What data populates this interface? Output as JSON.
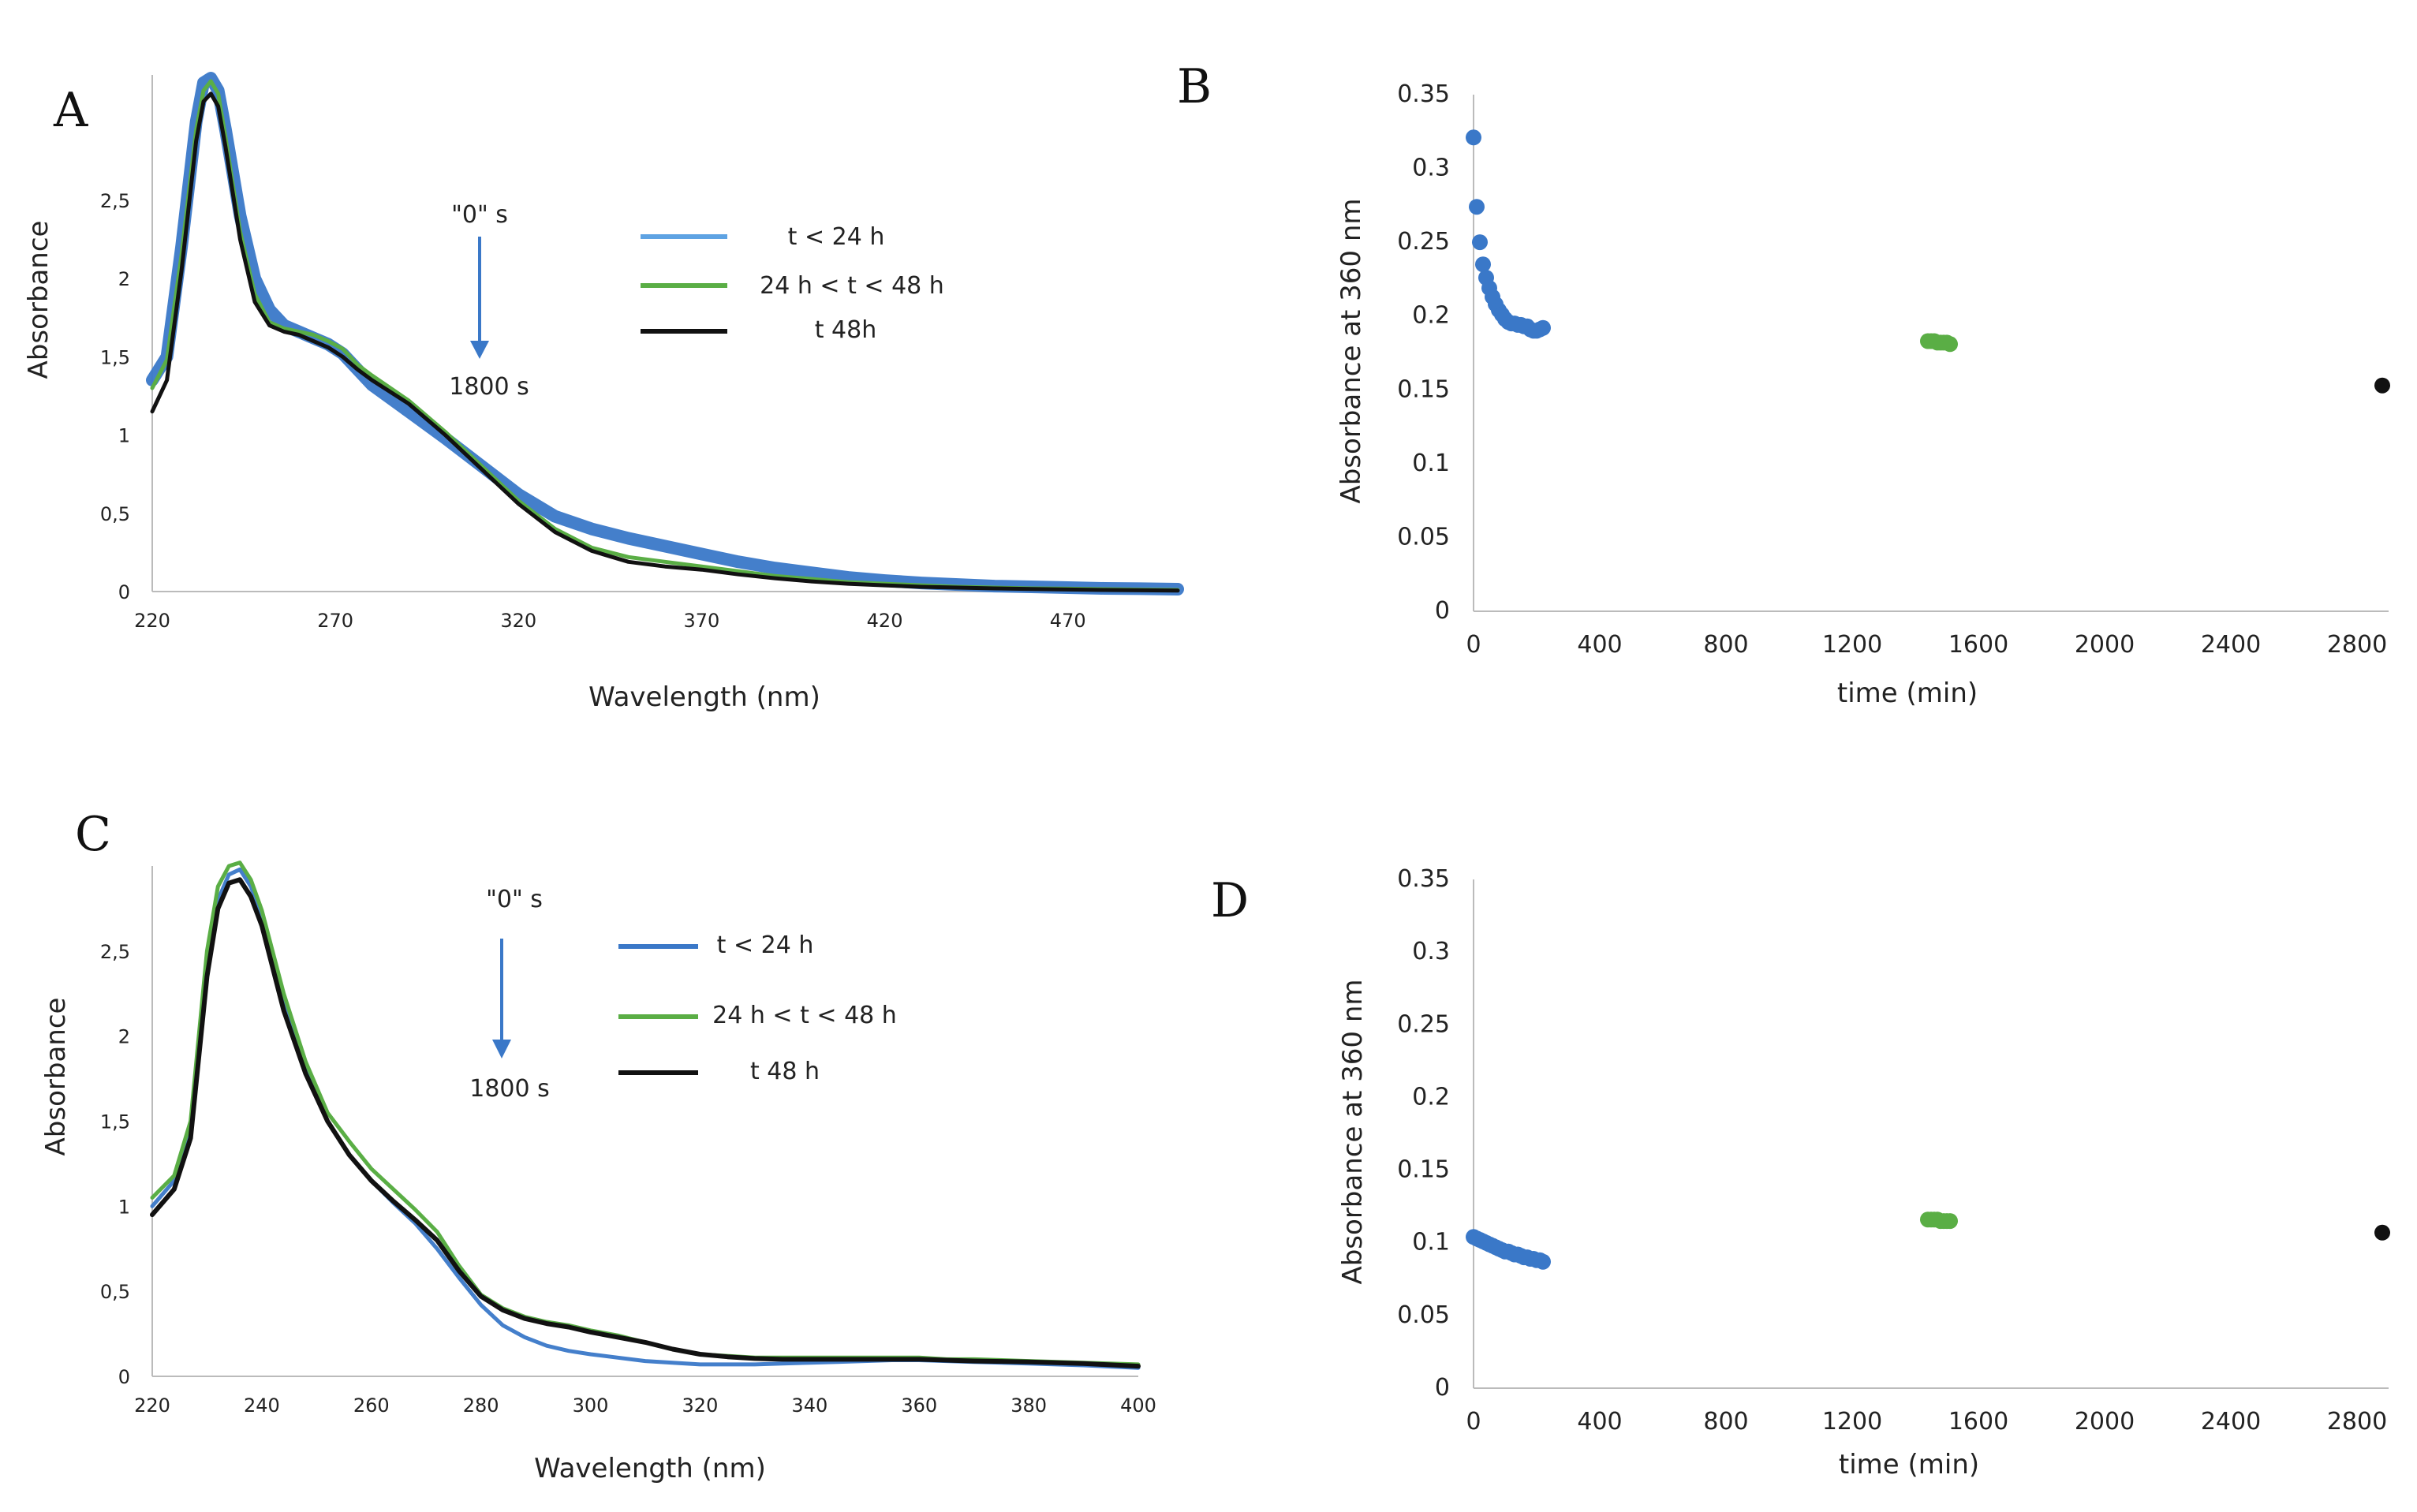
{
  "colors": {
    "blue": "#3a78c8",
    "blue_light": "#5ea3e3",
    "green": "#5aae45",
    "black": "#111111",
    "axis": "#bbbbbb"
  },
  "chart_data": [
    {
      "id": "A",
      "panel_label": "A",
      "type": "line",
      "title": "",
      "xlabel": "Wavelength (nm)",
      "ylabel": "Absorbance",
      "xlim": [
        220,
        500
      ],
      "ylim": [
        0,
        3.3
      ],
      "xticks": [
        220,
        270,
        320,
        370,
        420,
        470
      ],
      "xtick_labels": [
        "220",
        "270",
        "320",
        "370",
        "420",
        "470"
      ],
      "yticks": [
        0,
        0.5,
        1,
        1.5,
        2,
        2.5
      ],
      "ytick_labels": [
        "0",
        "0,5",
        "1",
        "1,5",
        "2",
        "2,5"
      ],
      "legend": [
        "t < 24 h",
        "24 h < t < 48 h",
        "t 48h"
      ],
      "annotation_top": "\"0\" s",
      "annotation_bottom": "1800 s",
      "series": [
        {
          "name": "t < 24 h",
          "color": "blue",
          "width": 16,
          "x": [
            220,
            224,
            228,
            232,
            234,
            236,
            238,
            240,
            244,
            248,
            252,
            256,
            260,
            264,
            268,
            272,
            276,
            280,
            290,
            300,
            310,
            320,
            330,
            340,
            350,
            360,
            370,
            380,
            390,
            400,
            410,
            420,
            430,
            440,
            450,
            460,
            470,
            480,
            490,
            500
          ],
          "y": [
            1.35,
            1.5,
            2.2,
            3.0,
            3.25,
            3.28,
            3.2,
            2.95,
            2.4,
            2.0,
            1.8,
            1.7,
            1.66,
            1.62,
            1.58,
            1.52,
            1.42,
            1.32,
            1.15,
            0.98,
            0.8,
            0.62,
            0.48,
            0.4,
            0.34,
            0.29,
            0.24,
            0.19,
            0.15,
            0.12,
            0.09,
            0.07,
            0.055,
            0.045,
            0.035,
            0.03,
            0.025,
            0.02,
            0.018,
            0.015
          ]
        },
        {
          "name": "24 h < t < 48 h",
          "color": "green",
          "width": 5,
          "x": [
            220,
            224,
            228,
            232,
            234,
            236,
            238,
            240,
            244,
            248,
            252,
            256,
            260,
            264,
            268,
            272,
            276,
            280,
            290,
            300,
            310,
            320,
            330,
            340,
            350,
            360,
            370,
            380,
            390,
            400,
            410,
            420,
            430,
            440,
            450,
            460,
            470,
            480,
            490,
            500
          ],
          "y": [
            1.3,
            1.48,
            2.15,
            2.95,
            3.2,
            3.26,
            3.18,
            2.9,
            2.3,
            1.9,
            1.72,
            1.68,
            1.66,
            1.64,
            1.6,
            1.55,
            1.45,
            1.38,
            1.22,
            1.02,
            0.8,
            0.58,
            0.4,
            0.28,
            0.22,
            0.19,
            0.16,
            0.13,
            0.1,
            0.08,
            0.06,
            0.05,
            0.04,
            0.03,
            0.025,
            0.02,
            0.018,
            0.015,
            0.012,
            0.01
          ]
        },
        {
          "name": "t 48h",
          "color": "black",
          "width": 5,
          "x": [
            220,
            224,
            228,
            232,
            234,
            236,
            238,
            240,
            244,
            248,
            252,
            256,
            260,
            264,
            268,
            272,
            276,
            280,
            290,
            300,
            310,
            320,
            330,
            340,
            350,
            360,
            370,
            380,
            390,
            400,
            410,
            420,
            430,
            440,
            450,
            460,
            470,
            480,
            490,
            500
          ],
          "y": [
            1.15,
            1.35,
            2.05,
            2.88,
            3.13,
            3.18,
            3.1,
            2.84,
            2.25,
            1.85,
            1.7,
            1.66,
            1.64,
            1.6,
            1.56,
            1.5,
            1.42,
            1.35,
            1.2,
            1.0,
            0.78,
            0.56,
            0.38,
            0.26,
            0.19,
            0.16,
            0.14,
            0.11,
            0.085,
            0.065,
            0.05,
            0.04,
            0.03,
            0.025,
            0.02,
            0.016,
            0.013,
            0.01,
            0.008,
            0.006
          ]
        }
      ]
    },
    {
      "id": "B",
      "panel_label": "B",
      "type": "scatter",
      "title": "",
      "xlabel": "time (min)",
      "ylabel": "Absorbance at 360 nm",
      "xlim": [
        0,
        2900
      ],
      "ylim": [
        0,
        0.35
      ],
      "xticks": [
        0,
        400,
        800,
        1200,
        1600,
        2000,
        2400,
        2800
      ],
      "xtick_labels": [
        "0",
        "400",
        "800",
        "1200",
        "1600",
        "2000",
        "2400",
        "2800"
      ],
      "yticks": [
        0,
        0.05,
        0.1,
        0.15,
        0.2,
        0.25,
        0.3,
        0.35
      ],
      "ytick_labels": [
        "0",
        "0.05",
        "0.1",
        "0.15",
        "0.2",
        "0.25",
        "0.3",
        "0.35"
      ],
      "series": [
        {
          "name": "t < 24 h",
          "color": "blue",
          "x": [
            0,
            10,
            20,
            30,
            40,
            50,
            60,
            70,
            80,
            90,
            100,
            110,
            120,
            130,
            140,
            150,
            160,
            170,
            180,
            190,
            200,
            210,
            220
          ],
          "y": [
            0.321,
            0.274,
            0.25,
            0.235,
            0.226,
            0.219,
            0.213,
            0.208,
            0.204,
            0.201,
            0.198,
            0.196,
            0.195,
            0.195,
            0.194,
            0.194,
            0.193,
            0.193,
            0.191,
            0.19,
            0.19,
            0.191,
            0.192
          ]
        },
        {
          "name": "24 h < t < 48 h",
          "color": "green",
          "x": [
            1440,
            1450,
            1460,
            1470,
            1480,
            1490,
            1500,
            1510
          ],
          "y": [
            0.183,
            0.183,
            0.183,
            0.182,
            0.182,
            0.182,
            0.182,
            0.181
          ]
        },
        {
          "name": "t 48h",
          "color": "black",
          "x": [
            2880
          ],
          "y": [
            0.153
          ]
        }
      ]
    },
    {
      "id": "C",
      "panel_label": "C",
      "type": "line",
      "title": "",
      "xlabel": "Wavelength (nm)",
      "ylabel": "Absorbance",
      "xlim": [
        220,
        400
      ],
      "ylim": [
        0,
        3.0
      ],
      "xticks": [
        220,
        240,
        260,
        280,
        300,
        320,
        340,
        360,
        380,
        400
      ],
      "xtick_labels": [
        "220",
        "240",
        "260",
        "280",
        "300",
        "320",
        "340",
        "360",
        "380",
        "400"
      ],
      "yticks": [
        0,
        0.5,
        1,
        1.5,
        2,
        2.5
      ],
      "ytick_labels": [
        "0",
        "0,5",
        "1",
        "1,5",
        "2",
        "2,5"
      ],
      "legend": [
        "t < 24 h",
        "24 h < t < 48 h",
        "t 48 h"
      ],
      "annotation_top": "\"0\" s",
      "annotation_bottom": "1800 s",
      "series": [
        {
          "name": "t < 24 h",
          "color": "blue",
          "width": 5,
          "x": [
            220,
            224,
            227,
            230,
            232,
            234,
            236,
            238,
            240,
            244,
            248,
            252,
            256,
            260,
            264,
            268,
            272,
            276,
            280,
            284,
            288,
            292,
            296,
            300,
            305,
            310,
            315,
            320,
            325,
            330,
            335,
            340,
            345,
            350,
            355,
            360,
            365,
            370,
            380,
            390,
            400
          ],
          "y": [
            1.0,
            1.15,
            1.45,
            2.4,
            2.8,
            2.95,
            2.98,
            2.88,
            2.7,
            2.2,
            1.8,
            1.5,
            1.3,
            1.15,
            1.02,
            0.9,
            0.75,
            0.58,
            0.42,
            0.3,
            0.23,
            0.18,
            0.15,
            0.13,
            0.11,
            0.09,
            0.08,
            0.07,
            0.07,
            0.07,
            0.075,
            0.08,
            0.085,
            0.09,
            0.095,
            0.095,
            0.09,
            0.085,
            0.075,
            0.065,
            0.05
          ]
        },
        {
          "name": "24 h < t < 48 h",
          "color": "green",
          "width": 5,
          "x": [
            220,
            224,
            227,
            230,
            232,
            234,
            236,
            238,
            240,
            244,
            248,
            252,
            256,
            260,
            264,
            268,
            272,
            276,
            280,
            284,
            288,
            292,
            296,
            300,
            305,
            310,
            315,
            320,
            325,
            330,
            335,
            340,
            345,
            350,
            355,
            360,
            365,
            370,
            380,
            390,
            400
          ],
          "y": [
            1.05,
            1.18,
            1.5,
            2.5,
            2.88,
            3.0,
            3.02,
            2.92,
            2.74,
            2.25,
            1.85,
            1.55,
            1.38,
            1.22,
            1.1,
            0.98,
            0.85,
            0.65,
            0.48,
            0.4,
            0.35,
            0.32,
            0.3,
            0.27,
            0.24,
            0.2,
            0.16,
            0.13,
            0.12,
            0.11,
            0.11,
            0.11,
            0.11,
            0.11,
            0.11,
            0.11,
            0.1,
            0.1,
            0.09,
            0.08,
            0.07
          ]
        },
        {
          "name": "t 48 h",
          "color": "black",
          "width": 6,
          "x": [
            220,
            224,
            227,
            230,
            232,
            234,
            236,
            238,
            240,
            244,
            248,
            252,
            256,
            260,
            264,
            268,
            272,
            276,
            280,
            284,
            288,
            292,
            296,
            300,
            305,
            310,
            315,
            320,
            325,
            330,
            335,
            340,
            345,
            350,
            355,
            360,
            365,
            370,
            380,
            390,
            400
          ],
          "y": [
            0.95,
            1.1,
            1.4,
            2.35,
            2.75,
            2.9,
            2.92,
            2.82,
            2.65,
            2.15,
            1.78,
            1.5,
            1.3,
            1.15,
            1.03,
            0.92,
            0.8,
            0.62,
            0.47,
            0.39,
            0.34,
            0.31,
            0.29,
            0.26,
            0.23,
            0.2,
            0.16,
            0.13,
            0.115,
            0.105,
            0.1,
            0.1,
            0.1,
            0.1,
            0.1,
            0.1,
            0.095,
            0.09,
            0.085,
            0.075,
            0.06
          ]
        }
      ]
    },
    {
      "id": "D",
      "panel_label": "D",
      "type": "scatter",
      "title": "",
      "xlabel": "time (min)",
      "ylabel": "Absorbance at 360 nm",
      "xlim": [
        0,
        2900
      ],
      "ylim": [
        0,
        0.35
      ],
      "xticks": [
        0,
        400,
        800,
        1200,
        1600,
        2000,
        2400,
        2800
      ],
      "xtick_labels": [
        "0",
        "400",
        "800",
        "1200",
        "1600",
        "2000",
        "2400",
        "2800"
      ],
      "yticks": [
        0,
        0.05,
        0.1,
        0.15,
        0.2,
        0.25,
        0.3,
        0.35
      ],
      "ytick_labels": [
        "0",
        "0.05",
        "0.1",
        "0.15",
        "0.2",
        "0.25",
        "0.3",
        "0.35"
      ],
      "series": [
        {
          "name": "t < 24 h",
          "color": "blue",
          "x": [
            0,
            10,
            20,
            30,
            40,
            50,
            60,
            70,
            80,
            90,
            100,
            110,
            120,
            130,
            140,
            150,
            160,
            170,
            180,
            190,
            200,
            210,
            220
          ],
          "y": [
            0.104,
            0.103,
            0.102,
            0.101,
            0.1,
            0.099,
            0.098,
            0.097,
            0.096,
            0.095,
            0.094,
            0.094,
            0.093,
            0.092,
            0.092,
            0.091,
            0.09,
            0.09,
            0.089,
            0.089,
            0.088,
            0.088,
            0.087
          ]
        },
        {
          "name": "24 h < t < 48 h",
          "color": "green",
          "x": [
            1440,
            1450,
            1460,
            1470,
            1480,
            1490,
            1500,
            1510
          ],
          "y": [
            0.116,
            0.116,
            0.116,
            0.116,
            0.115,
            0.115,
            0.115,
            0.115
          ]
        },
        {
          "name": "t 48h",
          "color": "black",
          "x": [
            2880
          ],
          "y": [
            0.107
          ]
        }
      ]
    }
  ]
}
